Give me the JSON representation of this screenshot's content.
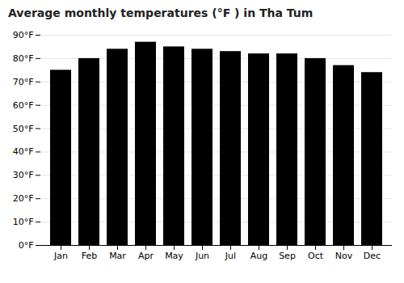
{
  "chart_data": {
    "type": "bar",
    "title": "Average monthly temperatures (°F ) in Tha Tum",
    "categories": [
      "Jan",
      "Feb",
      "Mar",
      "Apr",
      "May",
      "Jun",
      "Jul",
      "Aug",
      "Sep",
      "Oct",
      "Nov",
      "Dec"
    ],
    "values": [
      75,
      80,
      84,
      87,
      85,
      84,
      83,
      82,
      82,
      80,
      77,
      74
    ],
    "ylim": [
      0,
      90
    ],
    "yticks": [
      {
        "value": 0,
        "label": "0°F"
      },
      {
        "value": 10,
        "label": "10°F"
      },
      {
        "value": 20,
        "label": "20°F"
      },
      {
        "value": 30,
        "label": "30°F"
      },
      {
        "value": 40,
        "label": "40°F"
      },
      {
        "value": 50,
        "label": "50°F"
      },
      {
        "value": 60,
        "label": "60°F"
      },
      {
        "value": 70,
        "label": "70°F"
      },
      {
        "value": 80,
        "label": "80°F"
      },
      {
        "value": 90,
        "label": "90°F"
      }
    ],
    "grid": true
  }
}
